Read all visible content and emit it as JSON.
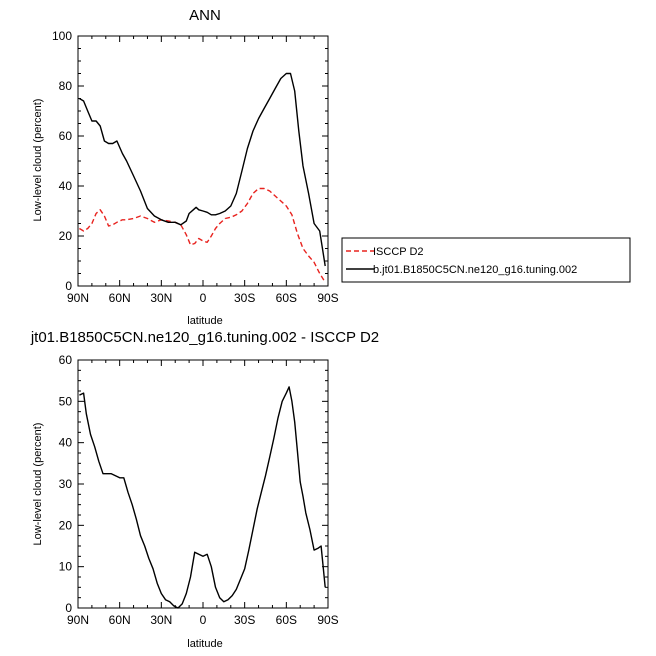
{
  "chart_data": [
    {
      "type": "line",
      "title": "ANN",
      "xlabel": "latitude",
      "ylabel": "Low-level cloud (percent)",
      "xlim": [
        90,
        -90
      ],
      "ylim": [
        0,
        100
      ],
      "xticks": [
        90,
        60,
        30,
        0,
        -30,
        -60,
        -90
      ],
      "xtick_labels": [
        "90N",
        "60N",
        "30N",
        "0",
        "30S",
        "60S",
        "90S"
      ],
      "yticks": [
        0,
        20,
        40,
        60,
        80,
        100
      ],
      "ytick_labels": [
        "0",
        "20",
        "40",
        "60",
        "80",
        "100"
      ],
      "grid": false,
      "legend": "right",
      "series": [
        {
          "name": "ISCCP D2",
          "color": "#e8231f",
          "dash": "dashed",
          "x": [
            89,
            86,
            83,
            80,
            77,
            74,
            71,
            68,
            65,
            62,
            58,
            55,
            50,
            45,
            40,
            35,
            30,
            25,
            20,
            16,
            12,
            9,
            6,
            3,
            0,
            -3,
            -6,
            -9,
            -12,
            -16,
            -20,
            -24,
            -28,
            -32,
            -36,
            -40,
            -44,
            -48,
            -52,
            -56,
            -60,
            -64,
            -68,
            -72,
            -76,
            -80,
            -84,
            -88
          ],
          "y": [
            23,
            22,
            23,
            25,
            29,
            30.5,
            28,
            24,
            24.5,
            25.5,
            26.5,
            26.5,
            27,
            28,
            27,
            25.5,
            26.5,
            26,
            25.5,
            24.5,
            20.5,
            16.5,
            17,
            19,
            18,
            17.5,
            20,
            23,
            25,
            27,
            27.5,
            28.5,
            30,
            33,
            37,
            39,
            39,
            38,
            36,
            34,
            32,
            28.5,
            21,
            15,
            12,
            9.5,
            5,
            1.5
          ]
        },
        {
          "name": "b.jt01.B1850C5CN.ne120_g16.tuning.002",
          "color": "#000000",
          "dash": "solid",
          "x": [
            89,
            86,
            83,
            80,
            77,
            74,
            71,
            68,
            65,
            62,
            58,
            55,
            50,
            45,
            40,
            35,
            30,
            25,
            20,
            16,
            12,
            10,
            7,
            5,
            3,
            0,
            -3,
            -6,
            -9,
            -12,
            -16,
            -20,
            -24,
            -28,
            -32,
            -36,
            -40,
            -44,
            -48,
            -52,
            -56,
            -60,
            -63,
            -66,
            -69,
            -72,
            -76,
            -80,
            -84,
            -88
          ],
          "y": [
            75,
            74,
            70,
            66,
            66,
            64,
            58,
            57,
            57,
            58,
            53,
            50,
            44,
            38,
            31,
            28,
            26.5,
            25.5,
            25.5,
            24.5,
            26,
            29,
            30.5,
            31.5,
            30.5,
            30,
            29.5,
            28.5,
            28.5,
            29,
            30,
            32,
            37,
            46,
            55,
            62,
            67,
            71,
            75,
            79,
            83,
            85,
            85,
            78,
            62,
            48,
            37,
            25,
            22,
            8
          ]
        }
      ]
    },
    {
      "type": "line",
      "title": "jt01.B1850C5CN.ne120_g16.tuning.002 - ISCCP D2",
      "xlabel": "latitude",
      "ylabel": "Low-level cloud (percent)",
      "xlim": [
        90,
        -90
      ],
      "ylim": [
        0,
        60
      ],
      "xticks": [
        90,
        60,
        30,
        0,
        -30,
        -60,
        -90
      ],
      "xtick_labels": [
        "90N",
        "60N",
        "30N",
        "0",
        "30S",
        "60S",
        "90S"
      ],
      "yticks": [
        0,
        10,
        20,
        30,
        40,
        50,
        60
      ],
      "ytick_labels": [
        "0",
        "10",
        "20",
        "30",
        "40",
        "50",
        "60"
      ],
      "grid": false,
      "series": [
        {
          "color": "#000000",
          "dash": "solid",
          "x": [
            89,
            86,
            84,
            81,
            78,
            75,
            72,
            69,
            66,
            63,
            60,
            57,
            54,
            51,
            48,
            45,
            42,
            39,
            36,
            33,
            30,
            27,
            24,
            21,
            18,
            15,
            12,
            9,
            6,
            3,
            0,
            -3,
            -6,
            -9,
            -12,
            -15,
            -18,
            -21,
            -24,
            -27,
            -30,
            -33,
            -36,
            -39,
            -42,
            -45,
            -48,
            -51,
            -54,
            -57,
            -60,
            -62,
            -64,
            -66,
            -68,
            -70,
            -72,
            -74,
            -77,
            -80,
            -83,
            -85,
            -88
          ],
          "y": [
            51.5,
            52,
            47,
            42,
            39,
            35.5,
            32.5,
            32.5,
            32.5,
            32,
            31.5,
            31.5,
            28,
            25,
            21.5,
            17.5,
            15,
            12,
            9.5,
            6,
            3.5,
            2,
            1.5,
            0.5,
            0,
            1,
            3.5,
            7.5,
            13.5,
            13,
            12.5,
            13,
            10,
            5,
            2.5,
            1.5,
            2,
            3,
            4.5,
            7,
            9.5,
            14,
            19,
            24,
            28,
            32,
            36.5,
            41,
            46,
            50,
            52,
            53.5,
            50,
            45,
            38,
            30.5,
            27,
            23,
            19,
            14,
            14.5,
            15,
            5
          ]
        }
      ]
    }
  ]
}
